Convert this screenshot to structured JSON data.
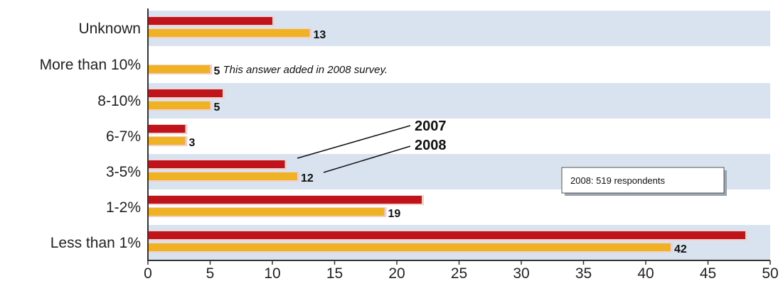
{
  "chart_data": {
    "type": "bar",
    "orientation": "horizontal",
    "categories": [
      "Unknown",
      "More than 10%",
      "8-10%",
      "6-7%",
      "3-5%",
      "1-2%",
      "Less than 1%"
    ],
    "series": [
      {
        "name": "2007",
        "values": [
          10,
          null,
          6,
          3,
          11,
          22,
          48
        ],
        "color": "#c0141c"
      },
      {
        "name": "2008",
        "values": [
          13,
          5,
          5,
          3,
          12,
          19,
          42
        ],
        "color": "#f0b225"
      }
    ],
    "data_labels": [
      "13",
      "5",
      "5",
      "3",
      "12",
      "19",
      "42"
    ],
    "xlim": [
      0,
      50
    ],
    "x_ticks": [
      "0",
      "5",
      "10",
      "15",
      "20",
      "25",
      "30",
      "35",
      "40",
      "45",
      "50"
    ],
    "annotations": {
      "note": "This answer added in 2008 survey.",
      "series_label_2007": "2007",
      "series_label_2008": "2008",
      "respondents": "2008: 519 respondents"
    },
    "band_color": "#d9e3ef",
    "grid": false
  }
}
